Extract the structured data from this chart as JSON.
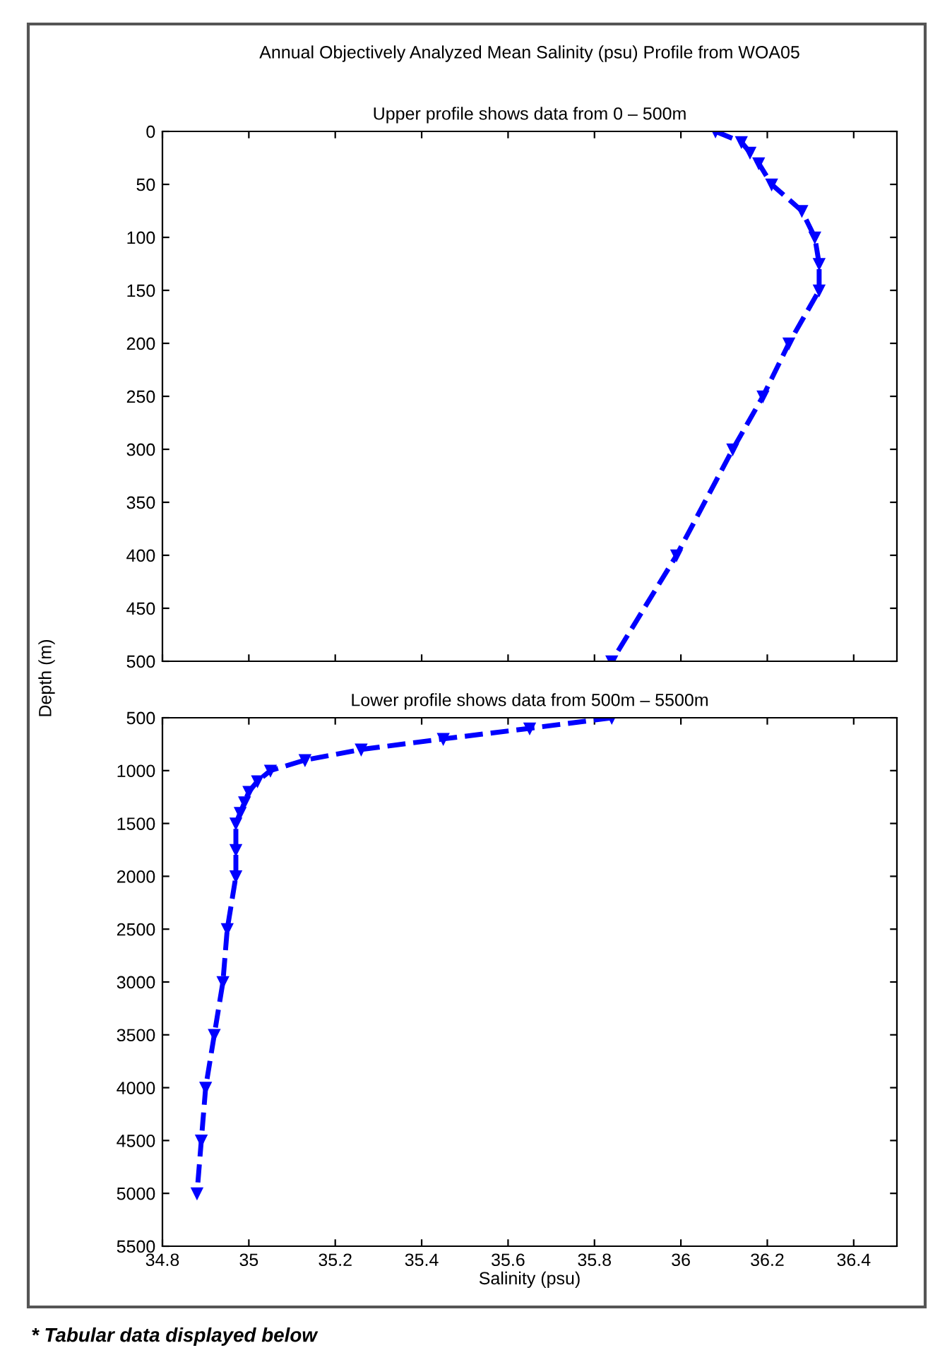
{
  "chart_data": [
    {
      "type": "line",
      "title": "Annual Objectively Analyzed Mean Salinity (psu) Profile from WOA05",
      "subtitle": "Upper profile shows data from 0 – 500m",
      "ylabel": "Depth (m)",
      "tick_labels": "y",
      "marker": "triangle",
      "line_style": "dashed",
      "grid": false,
      "legend": false,
      "xlim": [
        34.8,
        36.5
      ],
      "xticks": [
        34.8,
        35,
        35.2,
        35.4,
        35.6,
        35.8,
        36,
        36.2,
        36.4
      ],
      "ylim": [
        500,
        0
      ],
      "yticks": [
        0,
        50,
        100,
        150,
        200,
        250,
        300,
        350,
        400,
        450,
        500
      ],
      "series": [
        {
          "color": "#0000ff",
          "x": [
            36.08,
            36.14,
            36.16,
            36.18,
            36.21,
            36.28,
            36.31,
            36.32,
            36.32,
            36.25,
            36.19,
            36.12,
            35.99,
            35.84
          ],
          "values": [
            0,
            10,
            20,
            30,
            50,
            75,
            100,
            125,
            150,
            200,
            250,
            300,
            400,
            500
          ]
        }
      ]
    },
    {
      "type": "line",
      "subtitle": "Lower profile shows data from 500m – 5500m",
      "xlabel": "Salinity (psu)",
      "marker": "triangle",
      "line_style": "dashed",
      "grid": false,
      "legend": false,
      "annotations": [
        "* Tabular data displayed below"
      ],
      "xlim": [
        34.8,
        36.5
      ],
      "xticks": [
        34.8,
        35,
        35.2,
        35.4,
        35.6,
        35.8,
        36,
        36.2,
        36.4
      ],
      "ylim": [
        5500,
        500
      ],
      "yticks": [
        500,
        1000,
        1500,
        2000,
        2500,
        3000,
        3500,
        4000,
        4500,
        5000,
        5500
      ],
      "series": [
        {
          "color": "#0000ff",
          "x": [
            35.84,
            35.65,
            35.45,
            35.26,
            35.13,
            35.05,
            35.02,
            35.0,
            34.99,
            34.98,
            34.97,
            34.97,
            34.97,
            34.95,
            34.94,
            34.92,
            34.9,
            34.89,
            34.88
          ],
          "values": [
            500,
            600,
            700,
            800,
            900,
            1000,
            1100,
            1200,
            1300,
            1400,
            1500,
            1750,
            2000,
            2500,
            3000,
            3500,
            4000,
            4500,
            5000
          ]
        }
      ]
    }
  ]
}
